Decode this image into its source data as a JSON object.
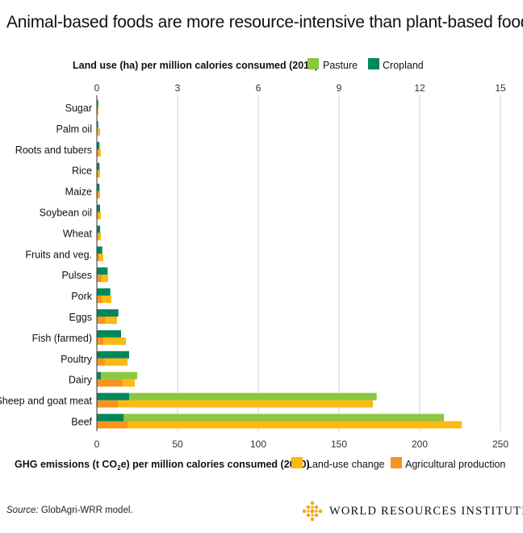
{
  "title": "Animal-based foods are more resource-intensive than plant-based foods",
  "top_axis": {
    "label": "Land use (ha) per million calories consumed (2010)",
    "ticks": [
      "0",
      "3",
      "6",
      "9",
      "12",
      "15"
    ],
    "legend": [
      {
        "name": "Pasture",
        "color": "#8dc63f"
      },
      {
        "name": "Cropland",
        "color": "#00875a"
      }
    ]
  },
  "bottom_axis": {
    "label_prefix": "GHG emissions (t CO",
    "label_sub": "2",
    "label_suffix": "e) per million calories consumed (2010)",
    "ticks": [
      "0",
      "50",
      "100",
      "150",
      "200",
      "250"
    ],
    "legend": [
      {
        "name": "Land-use change",
        "color": "#fdb913"
      },
      {
        "name": "Agricultural production",
        "color": "#f7941d"
      }
    ]
  },
  "source_label": "Source:",
  "source_text": "GlobAgri-WRR model.",
  "brand": "WORLD RESOURCES INSTITUTE",
  "colors": {
    "pasture": "#8dc63f",
    "cropland": "#00875a",
    "land_use_change": "#fdb913",
    "agricultural_production": "#f7941d",
    "axis": "#333333",
    "grid": "#d0d0d0"
  },
  "chart_data": {
    "type": "bar",
    "orientation": "horizontal",
    "categories": [
      "Sugar",
      "Palm oil",
      "Roots and tubers",
      "Rice",
      "Maize",
      "Soybean oil",
      "Wheat",
      "Fruits and veg.",
      "Pulses",
      "Pork",
      "Eggs",
      "Fish (farmed)",
      "Poultry",
      "Dairy",
      "Sheep and goat meat",
      "Beef"
    ],
    "land_use": {
      "axis_label": "Land use (ha) per million calories consumed (2010)",
      "xlim": [
        0,
        15
      ],
      "stacked": true,
      "series": [
        {
          "name": "Cropland",
          "values": [
            0.05,
            0.05,
            0.1,
            0.1,
            0.1,
            0.12,
            0.12,
            0.2,
            0.4,
            0.5,
            0.8,
            0.9,
            1.2,
            0.15,
            1.2,
            1.0
          ]
        },
        {
          "name": "Pasture",
          "values": [
            0,
            0,
            0,
            0,
            0,
            0,
            0,
            0,
            0,
            0,
            0,
            0,
            0,
            1.35,
            9.2,
            11.9
          ]
        }
      ]
    },
    "ghg": {
      "axis_label": "GHG emissions (t CO2e) per million calories consumed (2010)",
      "xlim": [
        0,
        250
      ],
      "stacked": true,
      "series": [
        {
          "name": "Agricultural production",
          "values": [
            0.5,
            0.5,
            1,
            1,
            1,
            1,
            1,
            1.5,
            3,
            3,
            5,
            4,
            5,
            16,
            13,
            19
          ]
        },
        {
          "name": "Land-use change",
          "values": [
            0.5,
            1.5,
            1.5,
            1,
            1,
            1.5,
            1.5,
            2.5,
            4,
            6,
            7.5,
            14,
            14,
            7.5,
            158,
            207
          ]
        }
      ]
    },
    "grid": true
  }
}
